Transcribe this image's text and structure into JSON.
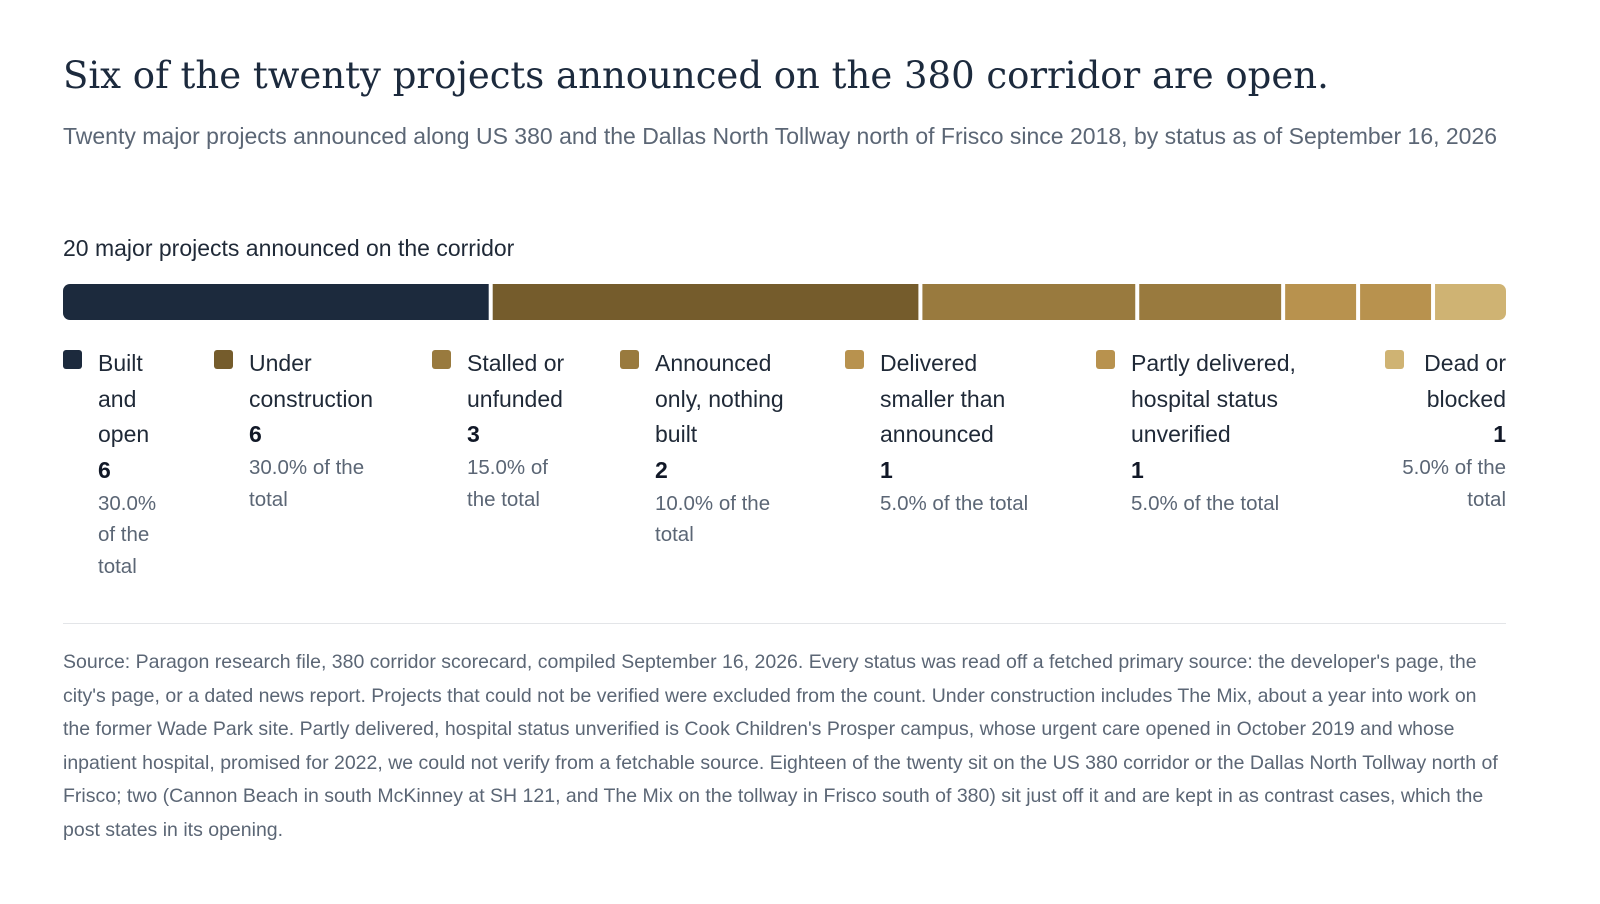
{
  "header": {
    "title": "Six of the twenty projects announced on the 380 corridor are open.",
    "subtitle": "Twenty major projects announced along US 380 and the Dallas North Tollway north of Frisco since 2018, by status as of September 16, 2026"
  },
  "bar_caption": "20 major projects announced on the corridor",
  "chart_data": {
    "type": "bar",
    "orientation": "horizontal",
    "stacked": true,
    "total": 20,
    "categories": [
      "Built and open",
      "Under construction",
      "Stalled or unfunded",
      "Announced only, nothing built",
      "Delivered smaller than announced",
      "Partly delivered, hospital status unverified",
      "Dead or blocked"
    ],
    "values": [
      6,
      6,
      3,
      2,
      1,
      1,
      1
    ],
    "series": [
      {
        "name": "Built and open",
        "value": 6,
        "count_label": "6",
        "share_label": "30.0% of the total",
        "color": "#1c2a3d"
      },
      {
        "name": "Under construction",
        "value": 6,
        "count_label": "6",
        "share_label": "30.0% of the total",
        "color": "#755c2c"
      },
      {
        "name": "Stalled or unfunded",
        "value": 3,
        "count_label": "3",
        "share_label": "15.0% of the total",
        "color": "#997a3e"
      },
      {
        "name": "Announced only, nothing built",
        "value": 2,
        "count_label": "2",
        "share_label": "10.0% of the total",
        "color": "#997a3e"
      },
      {
        "name": "Delivered smaller than announced",
        "value": 1,
        "count_label": "1",
        "share_label": "5.0% of the total",
        "color": "#b8924e"
      },
      {
        "name": "Partly delivered, hospital status unverified",
        "value": 1,
        "count_label": "1",
        "share_label": "5.0% of the total",
        "color": "#b8924e"
      },
      {
        "name": "Dead or blocked",
        "value": 1,
        "count_label": "1",
        "share_label": "5.0% of the total",
        "color": "#cfb373"
      }
    ],
    "legend_placement": "bottom",
    "grid": false
  },
  "source": "Source: Paragon research file, 380 corridor scorecard, compiled September 16, 2026. Every status was read off a fetched primary source: the developer's page, the city's page, or a dated news report. Projects that could not be verified were excluded from the count. Under construction includes The Mix, about a year into work on the former Wade Park site. Partly delivered, hospital status unverified is Cook Children's Prosper campus, whose urgent care opened in October 2019 and whose inpatient hospital, promised for 2022, we could not verify from a fetchable source. Eighteen of the twenty sit on the US 380 corridor or the Dallas North Tollway north of Frisco; two (Cannon Beach in south McKinney at SH 121, and The Mix on the tollway in Frisco south of 380) sit just off it and are kept in as contrast cases, which the post states in its opening."
}
